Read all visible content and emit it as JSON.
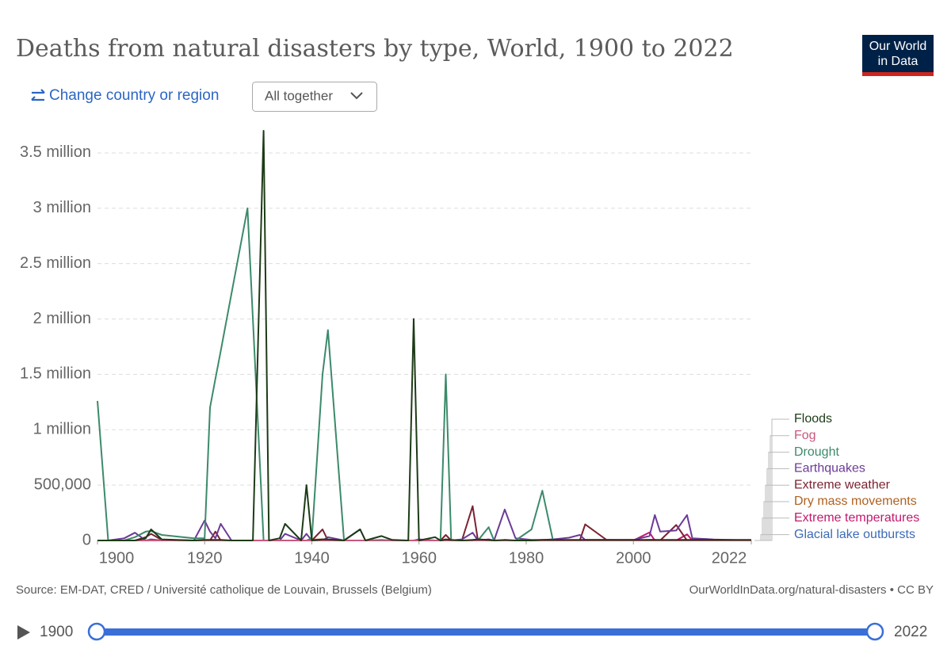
{
  "header": {
    "change_region": "Change country or region",
    "view_select": "All together",
    "logo": [
      "Our World",
      "in Data"
    ]
  },
  "chart_data": {
    "type": "line",
    "title": "Deaths from natural disasters by type, World, 1900 to 2022",
    "x": [
      1900,
      1902,
      1905,
      1907,
      1909,
      1910,
      1912,
      1918,
      1920,
      1921,
      1922,
      1923,
      1925,
      1928,
      1929,
      1931,
      1932,
      1934,
      1935,
      1938,
      1939,
      1940,
      1942,
      1943,
      1946,
      1949,
      1950,
      1953,
      1955,
      1958,
      1959,
      1960,
      1963,
      1964,
      1965,
      1966,
      1968,
      1970,
      1971,
      1973,
      1974,
      1976,
      1978,
      1981,
      1983,
      1985,
      1988,
      1990,
      1991,
      1995,
      2000,
      2003,
      2004,
      2005,
      2008,
      2010,
      2011,
      2015,
      2022
    ],
    "xlim": [
      1900,
      2022
    ],
    "xticks": [
      1900,
      1920,
      1940,
      1960,
      1980,
      2000,
      2022
    ],
    "ylim": [
      0,
      3700000
    ],
    "yticks": [
      {
        "value": 0,
        "label": "0"
      },
      {
        "value": 500000,
        "label": "500,000"
      },
      {
        "value": 1000000,
        "label": "1 million"
      },
      {
        "value": 1500000,
        "label": "1.5 million"
      },
      {
        "value": 2000000,
        "label": "2 million"
      },
      {
        "value": 2500000,
        "label": "2.5 million"
      },
      {
        "value": 3000000,
        "label": "3 million"
      },
      {
        "value": 3500000,
        "label": "3.5 million"
      }
    ],
    "grid": true,
    "series": [
      {
        "name": "Floods",
        "color": "#1d3b17",
        "values": [
          0,
          0,
          0,
          0,
          20000,
          100000,
          10000,
          0,
          5000,
          5000,
          5000,
          5000,
          0,
          0,
          0,
          3700000,
          0,
          20000,
          150000,
          0,
          500000,
          0,
          10000,
          10000,
          0,
          100000,
          0,
          40000,
          5000,
          0,
          2000000,
          0,
          30000,
          0,
          10000,
          5000,
          0,
          5000,
          10000,
          5000,
          0,
          5000,
          0,
          0,
          5000,
          5000,
          5000,
          5000,
          5000,
          5000,
          5000,
          5000,
          5000,
          5000,
          5000,
          5000,
          5000,
          5000,
          5000
        ]
      },
      {
        "name": "Fog",
        "color": "#c9577e",
        "values": [
          0,
          0,
          0,
          0,
          0,
          0,
          0,
          0,
          0,
          0,
          0,
          0,
          0,
          0,
          0,
          0,
          0,
          0,
          0,
          0,
          0,
          0,
          0,
          0,
          0,
          0,
          0,
          4000,
          0,
          0,
          0,
          0,
          0,
          0,
          0,
          0,
          0,
          0,
          0,
          0,
          0,
          0,
          0,
          0,
          0,
          0,
          0,
          0,
          0,
          0,
          0,
          0,
          0,
          0,
          0,
          0,
          0,
          0,
          0
        ]
      },
      {
        "name": "Drought",
        "color": "#3c8a6b",
        "values": [
          1260000,
          0,
          0,
          30000,
          80000,
          85000,
          50000,
          20000,
          20000,
          1200000,
          1460000,
          1710000,
          2230000,
          3000000,
          2000000,
          0,
          0,
          0,
          0,
          0,
          0,
          20000,
          1500000,
          1900000,
          0,
          0,
          0,
          0,
          0,
          0,
          0,
          0,
          0,
          0,
          1500000,
          0,
          0,
          0,
          0,
          120000,
          0,
          0,
          0,
          100000,
          450000,
          0,
          0,
          0,
          0,
          0,
          0,
          0,
          0,
          0,
          0,
          0,
          0,
          0,
          0
        ]
      },
      {
        "name": "Earthquakes",
        "color": "#6c3b97",
        "values": [
          0,
          0,
          20000,
          70000,
          0,
          10000,
          0,
          0,
          180000,
          80000,
          20000,
          150000,
          0,
          0,
          0,
          0,
          0,
          0,
          60000,
          0,
          60000,
          0,
          0,
          30000,
          0,
          100000,
          0,
          5000,
          0,
          0,
          0,
          10000,
          0,
          0,
          0,
          0,
          10000,
          70000,
          0,
          10000,
          0,
          280000,
          20000,
          5000,
          5000,
          10000,
          25000,
          50000,
          5000,
          5000,
          5000,
          40000,
          230000,
          80000,
          90000,
          230000,
          20000,
          9000,
          0
        ]
      },
      {
        "name": "Extreme weather",
        "color": "#7b2331",
        "values": [
          0,
          0,
          0,
          0,
          30000,
          60000,
          5000,
          0,
          0,
          0,
          80000,
          0,
          0,
          0,
          0,
          0,
          0,
          0,
          0,
          0,
          0,
          0,
          100000,
          0,
          0,
          0,
          0,
          0,
          0,
          0,
          0,
          0,
          0,
          0,
          50000,
          0,
          0,
          310000,
          0,
          0,
          0,
          0,
          0,
          0,
          0,
          10000,
          0,
          0,
          145000,
          5000,
          0,
          5000,
          5000,
          0,
          140000,
          0,
          5000,
          0,
          0
        ]
      },
      {
        "name": "Dry mass movements",
        "color": "#b0611f",
        "values": [
          0,
          0,
          0,
          0,
          0,
          0,
          0,
          0,
          5000,
          0,
          0,
          0,
          0,
          0,
          0,
          0,
          0,
          0,
          0,
          0,
          0,
          8000,
          10000,
          0,
          0,
          0,
          0,
          0,
          0,
          0,
          0,
          0,
          0,
          0,
          0,
          0,
          0,
          0,
          0,
          0,
          0,
          0,
          0,
          0,
          0,
          0,
          0,
          0,
          0,
          0,
          0,
          0,
          0,
          0,
          0,
          0,
          0,
          0,
          0
        ]
      },
      {
        "name": "Extreme temperatures",
        "color": "#c2186d",
        "values": [
          0,
          0,
          0,
          0,
          0,
          0,
          0,
          0,
          0,
          0,
          0,
          0,
          0,
          0,
          0,
          0,
          0,
          0,
          0,
          0,
          0,
          0,
          0,
          0,
          0,
          0,
          0,
          0,
          0,
          0,
          0,
          0,
          0,
          0,
          0,
          0,
          0,
          0,
          0,
          0,
          0,
          0,
          0,
          0,
          0,
          0,
          0,
          0,
          0,
          0,
          0,
          72000,
          0,
          0,
          0,
          56000,
          0,
          0,
          0
        ]
      },
      {
        "name": "Glacial lake outbursts",
        "color": "#3c6bb8",
        "values": [
          0,
          0,
          0,
          0,
          0,
          0,
          0,
          0,
          0,
          0,
          0,
          0,
          0,
          0,
          0,
          0,
          0,
          0,
          0,
          0,
          0,
          0,
          0,
          0,
          0,
          0,
          0,
          0,
          0,
          0,
          0,
          0,
          0,
          0,
          0,
          0,
          0,
          0,
          0,
          0,
          0,
          0,
          0,
          0,
          0,
          0,
          0,
          0,
          0,
          0,
          0,
          0,
          0,
          0,
          0,
          0,
          0,
          0,
          0
        ]
      }
    ]
  },
  "footer": {
    "source": "Source: EM-DAT, CRED / Université catholique de Louvain, Brussels (Belgium)",
    "url": "OurWorldInData.org/natural-disasters • CC BY"
  },
  "timeline": {
    "start": "1900",
    "end": "2022"
  }
}
